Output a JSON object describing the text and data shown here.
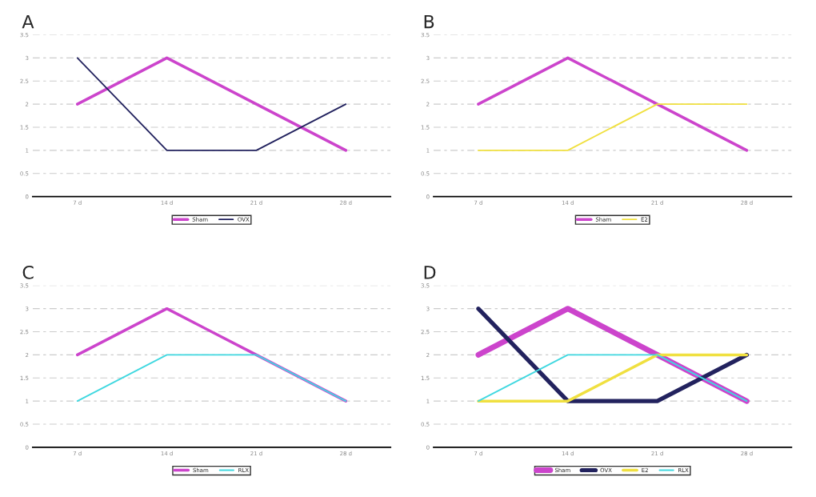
{
  "chart_data": [
    {
      "type": "line",
      "title": "A",
      "categories": [
        "7 d",
        "14 d",
        "21 d",
        "28 d"
      ],
      "ylim": [
        0,
        3.5
      ],
      "yticks": [
        0,
        0.5,
        1,
        1.5,
        2,
        2.5,
        3,
        3.5
      ],
      "grid": "y",
      "legend": "bottom",
      "series": [
        {
          "name": "Sham",
          "color": "#cc44cc",
          "values": [
            2,
            3,
            2,
            1
          ]
        },
        {
          "name": "OVX",
          "color": "#22225e",
          "values": [
            3,
            1,
            1,
            2
          ]
        }
      ]
    },
    {
      "type": "line",
      "title": "B",
      "categories": [
        "7 d",
        "14 d",
        "21 d",
        "28 d"
      ],
      "ylim": [
        0,
        3.5
      ],
      "yticks": [
        0,
        0.5,
        1,
        1.5,
        2,
        2.5,
        3,
        3.5
      ],
      "grid": "y",
      "legend": "bottom",
      "series": [
        {
          "name": "Sham",
          "color": "#cc44cc",
          "values": [
            2,
            3,
            2,
            1
          ]
        },
        {
          "name": "E2",
          "color": "#f0e040",
          "values": [
            1,
            1,
            2,
            2
          ]
        }
      ]
    },
    {
      "type": "line",
      "title": "C",
      "categories": [
        "7 d",
        "14 d",
        "21 d",
        "28 d"
      ],
      "ylim": [
        0,
        3.5
      ],
      "yticks": [
        0,
        0.5,
        1,
        1.5,
        2,
        2.5,
        3,
        3.5
      ],
      "grid": "y",
      "legend": "bottom",
      "series": [
        {
          "name": "Sham",
          "color": "#cc44cc",
          "values": [
            2,
            3,
            2,
            1
          ]
        },
        {
          "name": "RLX",
          "color": "#40d8e0",
          "values": [
            1,
            2,
            2,
            1
          ]
        }
      ]
    },
    {
      "type": "line",
      "title": "D",
      "categories": [
        "7 d",
        "14 d",
        "21 d",
        "28 d"
      ],
      "ylim": [
        0,
        3.5
      ],
      "yticks": [
        0,
        0.5,
        1,
        1.5,
        2,
        2.5,
        3,
        3.5
      ],
      "grid": "y",
      "legend": "bottom",
      "series": [
        {
          "name": "Sham",
          "color": "#cc44cc",
          "values": [
            2,
            3,
            2,
            1
          ]
        },
        {
          "name": "OVX",
          "color": "#22225e",
          "values": [
            3,
            1,
            1,
            2
          ]
        },
        {
          "name": "E2",
          "color": "#f0e040",
          "values": [
            1,
            1,
            2,
            2
          ]
        },
        {
          "name": "RLX",
          "color": "#40d8e0",
          "values": [
            1,
            2,
            2,
            1
          ]
        }
      ]
    }
  ]
}
